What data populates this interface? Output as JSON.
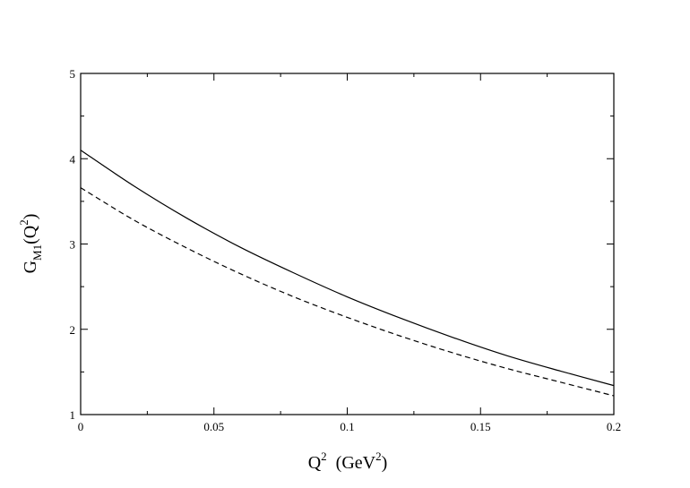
{
  "chart_data": {
    "type": "line",
    "title": "",
    "xlabel": {
      "base": "Q",
      "sup": "2",
      "rest": "(GeV",
      "rest_sup": "2",
      "close": ")"
    },
    "ylabel": {
      "base": "G",
      "sub": "M1",
      "paren_open": "(Q",
      "sup": "2",
      "paren_close": ")"
    },
    "xlim": [
      0,
      0.2
    ],
    "ylim": [
      1,
      5
    ],
    "x_ticks": [
      0,
      0.05,
      0.1,
      0.15,
      0.2
    ],
    "x_tick_labels": [
      "0",
      "0.05",
      "0.1",
      "0.15",
      "0.2"
    ],
    "y_ticks": [
      1,
      2,
      3,
      4,
      5
    ],
    "y_tick_labels": [
      "1",
      "2",
      "3",
      "4",
      "5"
    ],
    "grid": false,
    "legend": "none",
    "x": [
      0,
      0.02,
      0.04,
      0.06,
      0.08,
      0.1,
      0.12,
      0.14,
      0.16,
      0.18,
      0.2
    ],
    "series": [
      {
        "style": "solid",
        "color": "#000000",
        "values": [
          4.1,
          3.68,
          3.3,
          2.96,
          2.66,
          2.38,
          2.13,
          1.9,
          1.69,
          1.51,
          1.34
        ]
      },
      {
        "style": "dashed",
        "color": "#000000",
        "values": [
          3.66,
          3.28,
          2.95,
          2.65,
          2.38,
          2.14,
          1.92,
          1.72,
          1.54,
          1.38,
          1.22
        ]
      }
    ]
  }
}
